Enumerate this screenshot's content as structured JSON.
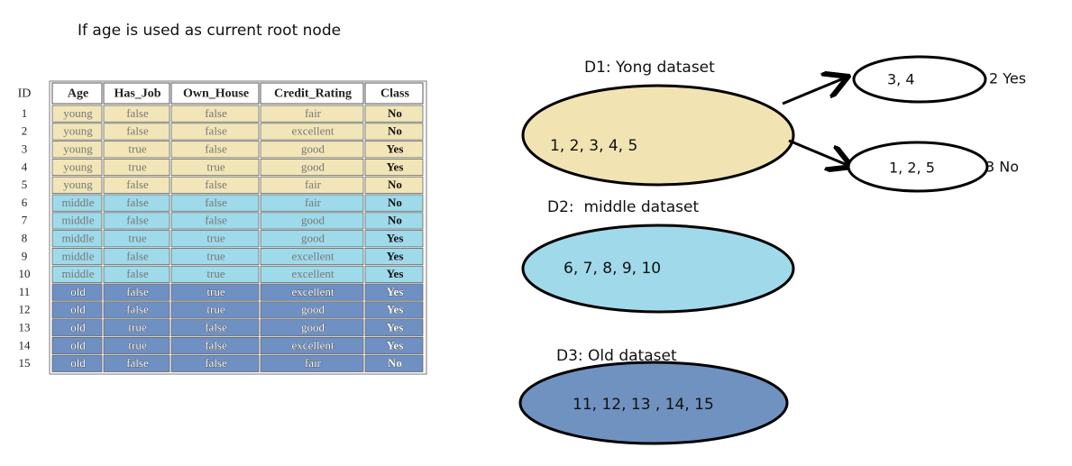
{
  "title": "If age is used as current root node",
  "table": {
    "header": [
      "ID",
      "Age",
      "Has_Job",
      "Own_House",
      "Credit_Rating",
      "Class"
    ],
    "rows": [
      [
        "1",
        "young",
        "false",
        "false",
        "fair",
        "No"
      ],
      [
        "2",
        "young",
        "false",
        "false",
        "excellent",
        "No"
      ],
      [
        "3",
        "young",
        "true",
        "false",
        "good",
        "Yes"
      ],
      [
        "4",
        "young",
        "true",
        "true",
        "good",
        "Yes"
      ],
      [
        "5",
        "young",
        "false",
        "false",
        "fair",
        "No"
      ],
      [
        "6",
        "middle",
        "false",
        "false",
        "fair",
        "No"
      ],
      [
        "7",
        "middle",
        "false",
        "false",
        "good",
        "No"
      ],
      [
        "8",
        "middle",
        "true",
        "true",
        "good",
        "Yes"
      ],
      [
        "9",
        "middle",
        "false",
        "true",
        "excellent",
        "Yes"
      ],
      [
        "10",
        "middle",
        "false",
        "true",
        "excellent",
        "Yes"
      ],
      [
        "11",
        "old",
        "false",
        "true",
        "excellent",
        "Yes"
      ],
      [
        "12",
        "old",
        "false",
        "true",
        "good",
        "Yes"
      ],
      [
        "13",
        "old",
        "true",
        "false",
        "good",
        "Yes"
      ],
      [
        "14",
        "old",
        "true",
        "false",
        "excellent",
        "Yes"
      ],
      [
        "15",
        "old",
        "false",
        "false",
        "fair",
        "No"
      ]
    ]
  },
  "datasets": [
    {
      "label": "D1: Yong dataset",
      "items": "1, 2, 3, 4, 5"
    },
    {
      "label": "D2:  middle dataset",
      "items": "6, 7, 8, 9, 10"
    },
    {
      "label": "D3: Old dataset",
      "items": "11, 12, 13 , 14, 15"
    }
  ],
  "branches": [
    {
      "items": "3, 4",
      "result": "2 Yes"
    },
    {
      "items": "1, 2, 5",
      "result": "3 No"
    }
  ]
}
